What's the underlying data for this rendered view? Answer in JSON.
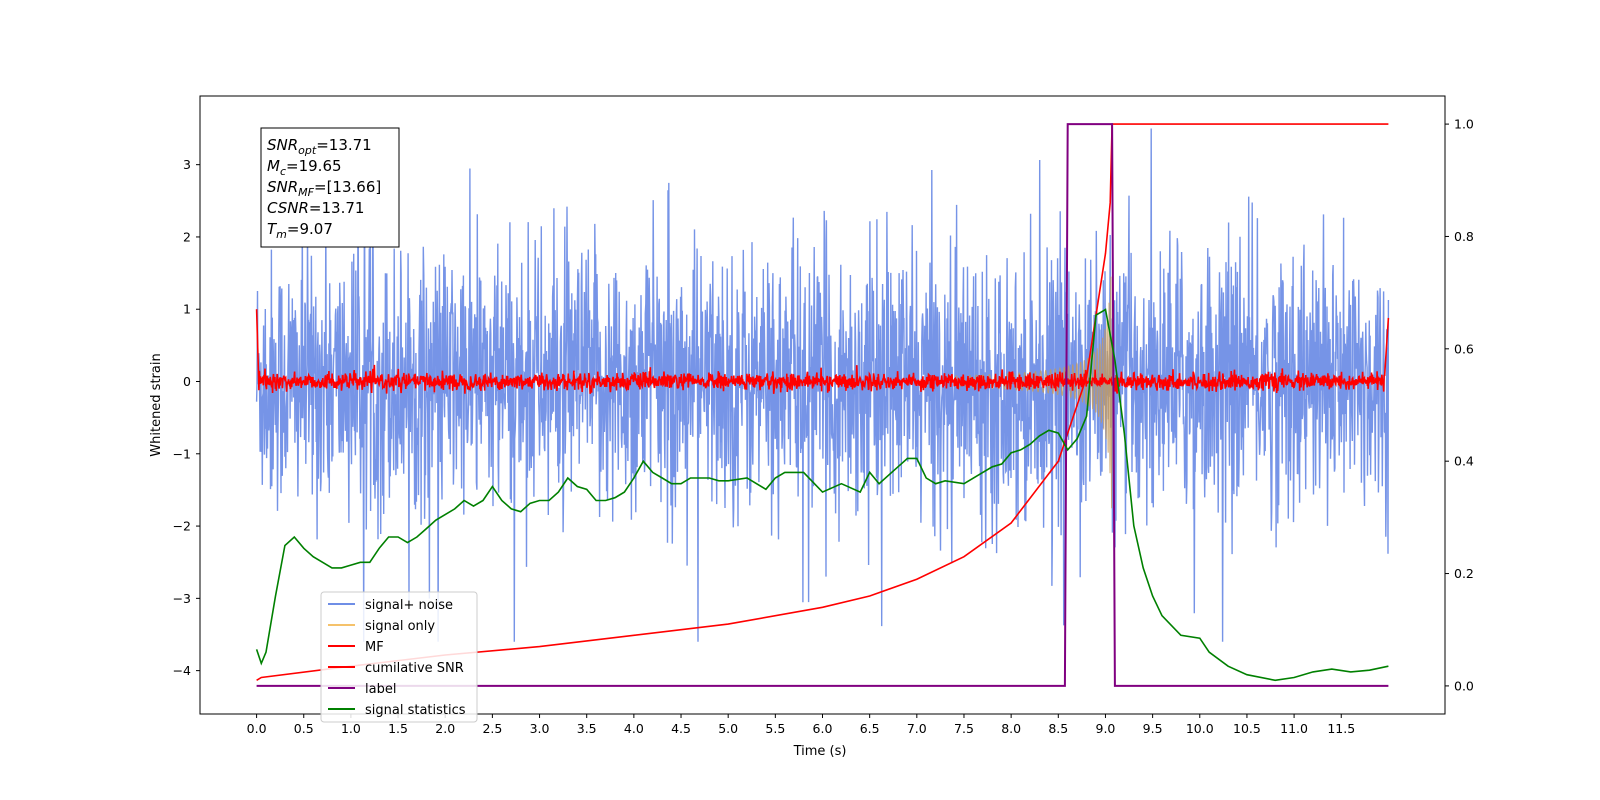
{
  "chart_data": {
    "type": "line",
    "title": "",
    "xlabel": "Time (s)",
    "ylabel": "Whitened strain",
    "xlim": [
      -0.6,
      12.6
    ],
    "ylim": [
      -4.6,
      3.95
    ],
    "y2lim": [
      -0.05,
      1.05
    ],
    "x_ticks": [
      "0.0",
      "0.5",
      "1.0",
      "1.5",
      "2.0",
      "2.5",
      "3.0",
      "3.5",
      "4.0",
      "4.5",
      "5.0",
      "5.5",
      "6.0",
      "6.5",
      "7.0",
      "7.5",
      "8.0",
      "8.5",
      "9.0",
      "9.5",
      "10.0",
      "10.5",
      "11.0",
      "11.5"
    ],
    "y_ticks": [
      "3",
      "2",
      "1",
      "0",
      "−1",
      "−2",
      "−3",
      "−4"
    ],
    "y2_ticks": [
      "1.0",
      "0.8",
      "0.6",
      "0.4",
      "0.2",
      "0.0"
    ],
    "grid": false,
    "legend_position": "lower-left",
    "annotations": [
      {
        "base": "SNR",
        "sub": "opt",
        "value": "=13.71"
      },
      {
        "base": "M",
        "sub": "c",
        "value": "=19.65"
      },
      {
        "base": "SNR",
        "sub": "MF",
        "value": "=[13.66]"
      },
      {
        "base": "CSNR",
        "sub": "",
        "value": "=13.71"
      },
      {
        "base": "T",
        "sub": "m",
        "value": "=9.07"
      }
    ],
    "series": [
      {
        "name": "signal+ noise",
        "color": "#6f8ee6",
        "axis": "left",
        "description": "whitened noise, amplitude ~±2.5 with spikes to ±3.5, over 0–12 s"
      },
      {
        "name": "signal only",
        "color": "#f5c26b",
        "axis": "left",
        "description": "chirp growing from ~0 at 7.5 s to ±2.5 at 9.07 s"
      },
      {
        "name": "MF",
        "color": "#ff0000",
        "axis": "left",
        "description": "matched filter output near 0 (±0.2)"
      },
      {
        "name": "cumilative SNR",
        "color": "#ff0000",
        "axis": "right",
        "x": [
          0.0,
          0.05,
          1.0,
          2.0,
          3.0,
          4.0,
          5.0,
          6.0,
          6.5,
          7.0,
          7.5,
          8.0,
          8.5,
          8.8,
          9.0,
          9.05,
          9.07,
          12.0
        ],
        "y": [
          0.01,
          0.015,
          0.035,
          0.055,
          0.07,
          0.09,
          0.11,
          0.14,
          0.16,
          0.19,
          0.23,
          0.29,
          0.4,
          0.55,
          0.77,
          0.86,
          1.0,
          1.0
        ]
      },
      {
        "name": "label",
        "color": "#800080",
        "axis": "right",
        "x": [
          0.0,
          8.57,
          8.6,
          9.07,
          9.1,
          12.0
        ],
        "y": [
          0.0,
          0.0,
          1.0,
          1.0,
          0.0,
          0.0
        ]
      },
      {
        "name": "signal statistics",
        "color": "#008000",
        "axis": "right",
        "x": [
          0.0,
          0.05,
          0.1,
          0.2,
          0.3,
          0.4,
          0.5,
          0.6,
          0.7,
          0.8,
          0.9,
          1.0,
          1.1,
          1.2,
          1.3,
          1.4,
          1.5,
          1.6,
          1.7,
          1.8,
          1.9,
          2.0,
          2.1,
          2.2,
          2.3,
          2.4,
          2.5,
          2.6,
          2.7,
          2.8,
          2.9,
          3.0,
          3.1,
          3.2,
          3.3,
          3.4,
          3.5,
          3.6,
          3.7,
          3.8,
          3.9,
          4.0,
          4.1,
          4.2,
          4.3,
          4.4,
          4.5,
          4.6,
          4.7,
          4.8,
          4.9,
          5.0,
          5.2,
          5.4,
          5.5,
          5.6,
          5.8,
          6.0,
          6.2,
          6.4,
          6.5,
          6.6,
          6.8,
          6.9,
          7.0,
          7.1,
          7.2,
          7.3,
          7.5,
          7.7,
          7.8,
          7.9,
          8.0,
          8.1,
          8.2,
          8.3,
          8.4,
          8.5,
          8.6,
          8.7,
          8.8,
          8.9,
          9.0,
          9.1,
          9.2,
          9.3,
          9.4,
          9.5,
          9.6,
          9.8,
          10.0,
          10.1,
          10.3,
          10.5,
          10.8,
          11.0,
          11.2,
          11.4,
          11.6,
          11.8,
          12.0
        ],
        "y": [
          0.065,
          0.04,
          0.06,
          0.16,
          0.25,
          0.265,
          0.245,
          0.23,
          0.22,
          0.21,
          0.21,
          0.215,
          0.22,
          0.22,
          0.245,
          0.265,
          0.265,
          0.255,
          0.265,
          0.28,
          0.295,
          0.305,
          0.315,
          0.33,
          0.32,
          0.33,
          0.355,
          0.33,
          0.315,
          0.31,
          0.325,
          0.33,
          0.33,
          0.345,
          0.37,
          0.355,
          0.35,
          0.33,
          0.33,
          0.335,
          0.345,
          0.37,
          0.4,
          0.38,
          0.37,
          0.36,
          0.36,
          0.37,
          0.37,
          0.37,
          0.365,
          0.365,
          0.37,
          0.35,
          0.37,
          0.38,
          0.38,
          0.345,
          0.36,
          0.345,
          0.38,
          0.36,
          0.39,
          0.405,
          0.405,
          0.37,
          0.36,
          0.365,
          0.36,
          0.38,
          0.39,
          0.395,
          0.415,
          0.42,
          0.43,
          0.445,
          0.455,
          0.45,
          0.42,
          0.44,
          0.48,
          0.66,
          0.67,
          0.58,
          0.45,
          0.285,
          0.21,
          0.16,
          0.125,
          0.09,
          0.085,
          0.06,
          0.035,
          0.02,
          0.01,
          0.015,
          0.025,
          0.03,
          0.025,
          0.028,
          0.035
        ]
      }
    ]
  }
}
